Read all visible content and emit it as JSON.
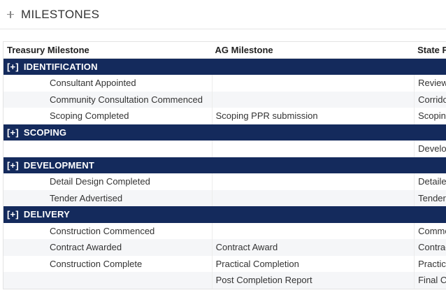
{
  "panel": {
    "title": "MILESTONES",
    "toggle_icon": "plus-icon"
  },
  "table": {
    "columns": [
      "Treasury Milestone",
      "AG Milestone",
      "State F"
    ],
    "expander_label": "[+]",
    "groups": [
      {
        "name": "IDENTIFICATION",
        "rows": [
          [
            "Consultant Appointed",
            "",
            "Review"
          ],
          [
            "Community Consultation Commenced",
            "",
            "Corrido"
          ],
          [
            "Scoping Completed",
            "Scoping PPR submission",
            "Scopin"
          ]
        ]
      },
      {
        "name": "SCOPING",
        "rows": [
          [
            "",
            "",
            "Develop"
          ]
        ]
      },
      {
        "name": "DEVELOPMENT",
        "rows": [
          [
            "Detail Design Completed",
            "",
            "Detailed"
          ],
          [
            "Tender Advertised",
            "",
            "Tender"
          ]
        ]
      },
      {
        "name": "DELIVERY",
        "rows": [
          [
            "Construction Commenced",
            "",
            "Comme"
          ],
          [
            "Contract Awarded",
            "Contract Award",
            "Contrac"
          ],
          [
            "Construction Complete",
            "Practical Completion",
            "Practica"
          ],
          [
            "",
            "Post Completion Report",
            "Final C"
          ]
        ]
      }
    ]
  }
}
